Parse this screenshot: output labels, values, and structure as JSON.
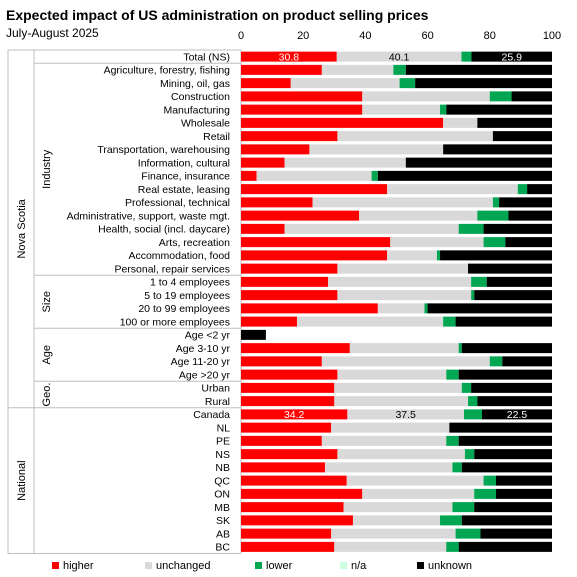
{
  "chart_data": {
    "type": "bar",
    "orientation": "horizontal-stacked",
    "title": "Expected impact of US administration on product selling prices",
    "subtitle": "July-August 2025",
    "xlim": [
      0,
      100
    ],
    "xticks": [
      "0",
      "20",
      "40",
      "60",
      "80",
      "100"
    ],
    "grid": false,
    "legend_position": "bottom",
    "series": [
      {
        "name": "higher",
        "color": "#ff0000"
      },
      {
        "name": "unchanged",
        "color": "#d9d9d9"
      },
      {
        "name": "lower",
        "color": "#00a651"
      },
      {
        "name": "n/a",
        "color": "#ccffdd"
      },
      {
        "name": "unknown",
        "color": "#000000"
      }
    ],
    "groups": [
      {
        "outer": "Nova Scotia",
        "inner": "",
        "rows": [
          {
            "label": "Total (NS)",
            "values": [
              30.8,
              40.1,
              3.2,
              0,
              25.9
            ],
            "data_labels": [
              "30.8",
              "40.1",
              "",
              "",
              "25.9"
            ]
          }
        ]
      },
      {
        "outer": "Nova Scotia",
        "inner": "Industry",
        "rows": [
          {
            "label": "Agriculture, forestry, fishing",
            "values": [
              26,
              23,
              4,
              0,
              47
            ]
          },
          {
            "label": "Mining, oil, gas",
            "values": [
              16,
              35,
              5,
              0,
              44
            ]
          },
          {
            "label": "Construction",
            "values": [
              39,
              41,
              7,
              0,
              13
            ]
          },
          {
            "label": "Manufacturing",
            "values": [
              39,
              25,
              2,
              0,
              34
            ]
          },
          {
            "label": "Wholesale",
            "values": [
              65,
              11,
              0,
              0,
              24
            ]
          },
          {
            "label": "Retail",
            "values": [
              31,
              50,
              0,
              0,
              19
            ]
          },
          {
            "label": "Transportation, warehousing",
            "values": [
              22,
              43,
              0,
              0,
              35
            ]
          },
          {
            "label": "Information, cultural",
            "values": [
              14,
              39,
              0,
              0,
              47
            ]
          },
          {
            "label": "Finance, insurance",
            "values": [
              5,
              37,
              2,
              0,
              56
            ]
          },
          {
            "label": "Real estate, leasing",
            "values": [
              47,
              42,
              3,
              0,
              8
            ]
          },
          {
            "label": "Professional, technical",
            "values": [
              23,
              58,
              2,
              0,
              17
            ]
          },
          {
            "label": "Administrative, support, waste mgt.",
            "values": [
              38,
              38,
              10,
              0,
              14
            ]
          },
          {
            "label": "Health, social (incl. daycare)",
            "values": [
              14,
              56,
              8,
              0,
              22
            ]
          },
          {
            "label": "Arts, recreation",
            "values": [
              48,
              30,
              7,
              0,
              15
            ]
          },
          {
            "label": "Accommodation, food",
            "values": [
              47,
              16,
              1,
              0,
              36
            ]
          },
          {
            "label": "Personal, repair services",
            "values": [
              31,
              42,
              0,
              0,
              27
            ]
          }
        ]
      },
      {
        "outer": "Nova Scotia",
        "inner": "Size",
        "rows": [
          {
            "label": "1 to 4 employees",
            "values": [
              28,
              46,
              5,
              0,
              21
            ]
          },
          {
            "label": "5 to 19 employees",
            "values": [
              31,
              43,
              1,
              0,
              25
            ]
          },
          {
            "label": "20 to 99 employees",
            "values": [
              44,
              15,
              1,
              0,
              40
            ]
          },
          {
            "label": "100 or more employees",
            "values": [
              18,
              47,
              4,
              0,
              31
            ]
          }
        ]
      },
      {
        "outer": "Nova Scotia",
        "inner": "Age",
        "rows": [
          {
            "label": "Age <2 yr",
            "values": [
              0,
              0,
              0,
              0,
              8
            ]
          },
          {
            "label": "Age 3-10 yr",
            "values": [
              35,
              35,
              1,
              0,
              29
            ]
          },
          {
            "label": "Age 11-20 yr",
            "values": [
              26,
              54,
              4,
              0,
              16
            ]
          },
          {
            "label": "Age >20 yr",
            "values": [
              31,
              35,
              4,
              0,
              30
            ]
          }
        ]
      },
      {
        "outer": "Nova Scotia",
        "inner": "Geo.",
        "rows": [
          {
            "label": "Urban",
            "values": [
              30,
              41,
              3,
              0,
              26
            ]
          },
          {
            "label": "Rural",
            "values": [
              30,
              43,
              3,
              0,
              24
            ]
          }
        ]
      },
      {
        "outer": "National",
        "inner": "",
        "rows": [
          {
            "label": "Canada",
            "values": [
              34.2,
              37.5,
              5.8,
              0,
              22.5
            ],
            "data_labels": [
              "34.2",
              "37.5",
              "",
              "",
              "22.5"
            ]
          },
          {
            "label": "NL",
            "values": [
              29,
              38,
              0,
              0,
              33
            ]
          },
          {
            "label": "PE",
            "values": [
              26,
              40,
              4,
              0,
              30
            ]
          },
          {
            "label": "NS",
            "values": [
              31,
              41,
              3,
              0,
              25
            ]
          },
          {
            "label": "NB",
            "values": [
              27,
              41,
              3,
              0,
              29
            ]
          },
          {
            "label": "QC",
            "values": [
              34,
              44,
              4,
              0,
              18
            ]
          },
          {
            "label": "ON",
            "values": [
              39,
              36,
              7,
              0,
              18
            ]
          },
          {
            "label": "MB",
            "values": [
              33,
              35,
              7,
              0,
              25
            ]
          },
          {
            "label": "SK",
            "values": [
              36,
              28,
              7,
              0,
              29
            ]
          },
          {
            "label": "AB",
            "values": [
              29,
              40,
              8,
              0,
              23
            ]
          },
          {
            "label": "BC",
            "values": [
              30,
              36,
              4,
              0,
              30
            ]
          }
        ]
      }
    ]
  }
}
